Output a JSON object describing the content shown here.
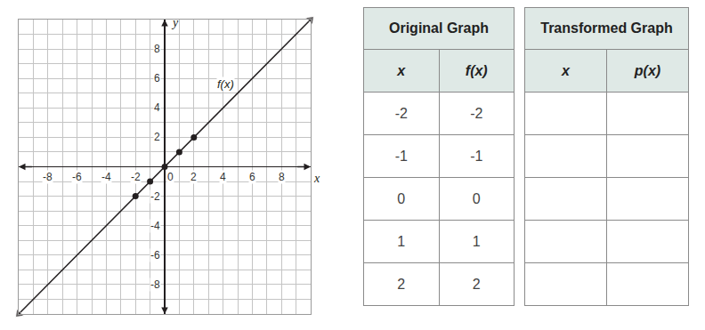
{
  "chart_data": {
    "type": "line",
    "x": [
      -10,
      -2,
      -1,
      0,
      1,
      2,
      10
    ],
    "series": [
      {
        "type": "line",
        "color": "#231f20",
        "marker": "arrow",
        "values": [
          -10,
          -2,
          -1,
          0,
          1,
          2,
          10
        ]
      },
      {
        "type": "scatter",
        "color": "#231f20",
        "marker": "circle",
        "values": [
          null,
          -2,
          -1,
          0,
          1,
          2,
          null
        ]
      }
    ],
    "xlabel": "x",
    "ylabel": "y",
    "annotations": [
      {
        "text": "f(x)",
        "x": 4.2,
        "y": 5.6
      }
    ],
    "xlim": [
      -10,
      10
    ],
    "ylim": [
      -10,
      10
    ],
    "xticks": [
      -8,
      -6,
      -4,
      -2,
      0,
      2,
      4,
      6,
      8
    ],
    "yticks": [
      -8,
      -6,
      -4,
      -2,
      2,
      4,
      6,
      8
    ],
    "grid": true
  },
  "tables": [
    {
      "title": "Original Graph",
      "columns": [
        "x",
        "f(x)"
      ],
      "rows": [
        [
          -2,
          -2
        ],
        [
          -1,
          -1
        ],
        [
          0,
          0
        ],
        [
          1,
          1
        ],
        [
          2,
          2
        ]
      ]
    },
    {
      "title": "Transformed Graph",
      "columns": [
        "x",
        "p(x)"
      ],
      "rows": [
        [
          null,
          null
        ],
        [
          null,
          null
        ],
        [
          null,
          null
        ],
        [
          null,
          null
        ],
        [
          null,
          null
        ]
      ]
    }
  ]
}
